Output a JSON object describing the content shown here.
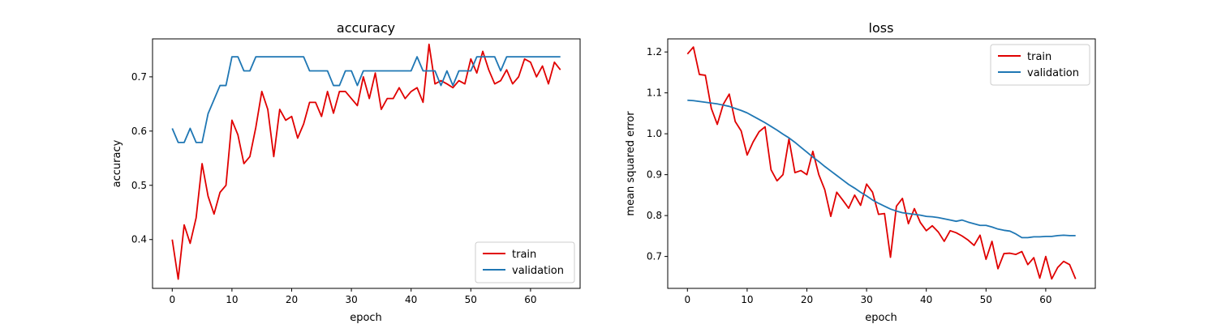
{
  "chart_data": [
    {
      "type": "line",
      "title": "accuracy",
      "xlabel": "epoch",
      "ylabel": "accuracy",
      "xlim": [
        -3.3,
        68.3
      ],
      "ylim": [
        0.31,
        0.77
      ],
      "xticks": [
        0,
        10,
        20,
        30,
        40,
        50,
        60
      ],
      "yticks": [
        0.4,
        0.5,
        0.6,
        0.7
      ],
      "legend_position": "lower-right",
      "grid": false,
      "series": [
        {
          "name": "train",
          "color": "#e00000",
          "values": [
            0.4,
            0.327,
            0.427,
            0.393,
            0.44,
            0.54,
            0.48,
            0.447,
            0.487,
            0.5,
            0.62,
            0.593,
            0.54,
            0.553,
            0.607,
            0.673,
            0.64,
            0.553,
            0.64,
            0.62,
            0.627,
            0.587,
            0.613,
            0.653,
            0.653,
            0.627,
            0.673,
            0.633,
            0.673,
            0.673,
            0.66,
            0.647,
            0.7,
            0.66,
            0.707,
            0.64,
            0.66,
            0.66,
            0.68,
            0.66,
            0.673,
            0.68,
            0.653,
            0.76,
            0.687,
            0.693,
            0.687,
            0.68,
            0.693,
            0.687,
            0.733,
            0.707,
            0.747,
            0.713,
            0.687,
            0.693,
            0.713,
            0.687,
            0.7,
            0.733,
            0.727,
            0.7,
            0.72,
            0.687,
            0.727,
            0.713
          ]
        },
        {
          "name": "validation",
          "color": "#1f77b4",
          "values": [
            0.605,
            0.579,
            0.579,
            0.605,
            0.579,
            0.579,
            0.632,
            0.658,
            0.684,
            0.684,
            0.737,
            0.737,
            0.711,
            0.711,
            0.737,
            0.737,
            0.737,
            0.737,
            0.737,
            0.737,
            0.737,
            0.737,
            0.737,
            0.711,
            0.711,
            0.711,
            0.711,
            0.684,
            0.684,
            0.711,
            0.711,
            0.684,
            0.711,
            0.711,
            0.711,
            0.711,
            0.711,
            0.711,
            0.711,
            0.711,
            0.711,
            0.737,
            0.711,
            0.711,
            0.711,
            0.684,
            0.711,
            0.684,
            0.711,
            0.711,
            0.711,
            0.737,
            0.737,
            0.737,
            0.737,
            0.711,
            0.737,
            0.737,
            0.737,
            0.737,
            0.737,
            0.737,
            0.737,
            0.737,
            0.737,
            0.737
          ]
        }
      ]
    },
    {
      "type": "line",
      "title": "loss",
      "xlabel": "epoch",
      "ylabel": "mean squared error",
      "xlim": [
        -3.3,
        68.3
      ],
      "ylim": [
        0.622,
        1.232
      ],
      "xticks": [
        0,
        10,
        20,
        30,
        40,
        50,
        60
      ],
      "yticks": [
        0.7,
        0.8,
        0.9,
        1.0,
        1.1,
        1.2
      ],
      "legend_position": "upper-right",
      "grid": false,
      "series": [
        {
          "name": "train",
          "color": "#e00000",
          "values": [
            1.195,
            1.212,
            1.145,
            1.143,
            1.062,
            1.023,
            1.072,
            1.097,
            1.03,
            1.007,
            0.948,
            0.98,
            1.005,
            1.017,
            0.912,
            0.885,
            0.9,
            0.987,
            0.905,
            0.91,
            0.9,
            0.957,
            0.9,
            0.863,
            0.798,
            0.857,
            0.838,
            0.818,
            0.85,
            0.825,
            0.877,
            0.857,
            0.803,
            0.805,
            0.698,
            0.823,
            0.842,
            0.78,
            0.817,
            0.783,
            0.763,
            0.775,
            0.76,
            0.737,
            0.763,
            0.758,
            0.75,
            0.74,
            0.727,
            0.752,
            0.693,
            0.737,
            0.67,
            0.707,
            0.708,
            0.705,
            0.712,
            0.68,
            0.697,
            0.647,
            0.7,
            0.645,
            0.673,
            0.688,
            0.68,
            0.645
          ]
        },
        {
          "name": "validation",
          "color": "#1f77b4",
          "values": [
            1.082,
            1.081,
            1.079,
            1.077,
            1.075,
            1.073,
            1.07,
            1.067,
            1.062,
            1.057,
            1.051,
            1.043,
            1.035,
            1.027,
            1.018,
            1.009,
            0.999,
            0.99,
            0.979,
            0.967,
            0.955,
            0.943,
            0.932,
            0.92,
            0.909,
            0.898,
            0.887,
            0.876,
            0.867,
            0.857,
            0.848,
            0.838,
            0.83,
            0.823,
            0.816,
            0.811,
            0.807,
            0.805,
            0.803,
            0.801,
            0.798,
            0.797,
            0.795,
            0.792,
            0.789,
            0.786,
            0.789,
            0.784,
            0.78,
            0.776,
            0.776,
            0.772,
            0.767,
            0.764,
            0.762,
            0.755,
            0.746,
            0.746,
            0.748,
            0.748,
            0.749,
            0.749,
            0.751,
            0.752,
            0.751,
            0.751
          ]
        }
      ]
    }
  ]
}
